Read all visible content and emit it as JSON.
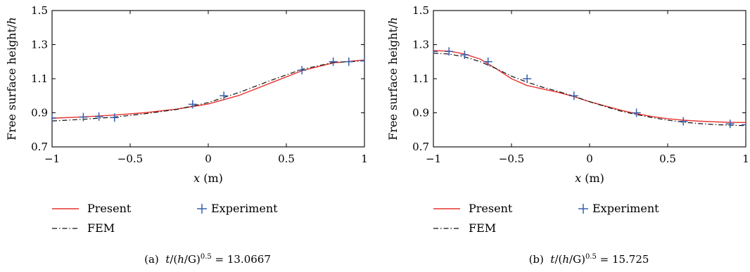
{
  "chart_data": [
    {
      "type": "line",
      "panel": "a",
      "caption": {
        "tag": "(a)",
        "t": "t",
        "paren": "/(",
        "h": "h",
        "slash": "/",
        "G": "G",
        "close": ")",
        "exp": "0.5",
        "value": " = 13.0667"
      },
      "xlabel": {
        "var": "x",
        "unit": " (m)"
      },
      "ylabel": {
        "prefix": "Free surface height/",
        "var": "h"
      },
      "xlim": [
        -1,
        1
      ],
      "ylim": [
        0.7,
        1.5
      ],
      "xticks": [
        -1,
        -0.5,
        0,
        0.5,
        1
      ],
      "xtick_labels": [
        "−1",
        "−0.5",
        "0",
        "0.5",
        "1"
      ],
      "yticks": [
        0.7,
        0.9,
        1.1,
        1.3,
        1.5
      ],
      "ytick_labels": [
        "0.7",
        "0.9",
        "1.1",
        "1.3",
        "1.5"
      ],
      "grid": false,
      "legend_position": "below",
      "series": [
        {
          "name": "Present",
          "style": "line",
          "color": "#e8322d",
          "x": [
            -1,
            -0.8,
            -0.6,
            -0.4,
            -0.2,
            0,
            0.2,
            0.4,
            0.6,
            0.8,
            1
          ],
          "y": [
            0.868,
            0.876,
            0.887,
            0.901,
            0.922,
            0.952,
            1.003,
            1.075,
            1.147,
            1.193,
            1.21
          ]
        },
        {
          "name": "FEM",
          "style": "dash-dot",
          "color": "#111111",
          "x": [
            -1,
            -0.8,
            -0.6,
            -0.4,
            -0.2,
            0,
            0.2,
            0.4,
            0.6,
            0.8,
            1
          ],
          "y": [
            0.852,
            0.862,
            0.875,
            0.895,
            0.92,
            0.96,
            1.02,
            1.09,
            1.155,
            1.195,
            1.205
          ]
        },
        {
          "name": "Experiment",
          "style": "marker-plus",
          "color": "#3a5fad",
          "x": [
            -1,
            -0.8,
            -0.7,
            -0.6,
            -0.1,
            0.1,
            0.6,
            0.8,
            0.9,
            1
          ],
          "y": [
            0.87,
            0.875,
            0.878,
            0.872,
            0.95,
            1.0,
            1.15,
            1.2,
            1.2,
            1.205
          ]
        }
      ]
    },
    {
      "type": "line",
      "panel": "b",
      "caption": {
        "tag": "(b)",
        "t": "t",
        "paren": "/(",
        "h": "h",
        "slash": "/",
        "G": "G",
        "close": ")",
        "exp": "0.5",
        "value": " = 15.725"
      },
      "xlabel": {
        "var": "x",
        "unit": " (m)"
      },
      "ylabel": {
        "prefix": "Free surface height/",
        "var": "h"
      },
      "xlim": [
        -1,
        1
      ],
      "ylim": [
        0.7,
        1.5
      ],
      "xticks": [
        -1,
        -0.5,
        0,
        0.5,
        1
      ],
      "xtick_labels": [
        "−1",
        "−0.5",
        "0",
        "0.5",
        "1"
      ],
      "yticks": [
        0.7,
        0.9,
        1.1,
        1.3,
        1.5
      ],
      "ytick_labels": [
        "0.7",
        "0.9",
        "1.1",
        "1.3",
        "1.5"
      ],
      "grid": false,
      "legend_position": "below",
      "series": [
        {
          "name": "Present",
          "style": "line",
          "color": "#e8322d",
          "x": [
            -1,
            -0.9,
            -0.8,
            -0.7,
            -0.6,
            -0.5,
            -0.4,
            -0.3,
            -0.2,
            -0.1,
            0,
            0.1,
            0.2,
            0.3,
            0.4,
            0.5,
            0.6,
            0.7,
            0.8,
            0.9,
            1
          ],
          "y": [
            1.265,
            1.262,
            1.245,
            1.215,
            1.16,
            1.1,
            1.06,
            1.04,
            1.02,
            0.995,
            0.965,
            0.94,
            0.915,
            0.895,
            0.878,
            0.865,
            0.857,
            0.851,
            0.847,
            0.844,
            0.843
          ]
        },
        {
          "name": "FEM",
          "style": "dash-dot",
          "color": "#111111",
          "x": [
            -1,
            -0.9,
            -0.8,
            -0.7,
            -0.6,
            -0.5,
            -0.4,
            -0.3,
            -0.2,
            -0.1,
            0,
            0.1,
            0.2,
            0.3,
            0.4,
            0.5,
            0.6,
            0.7,
            0.8,
            0.9,
            1
          ],
          "y": [
            1.25,
            1.245,
            1.228,
            1.2,
            1.16,
            1.115,
            1.08,
            1.05,
            1.025,
            0.997,
            0.965,
            0.937,
            0.91,
            0.89,
            0.872,
            0.857,
            0.845,
            0.837,
            0.831,
            0.827,
            0.825
          ]
        },
        {
          "name": "Experiment",
          "style": "marker-plus",
          "color": "#3a5fad",
          "x": [
            -1,
            -0.9,
            -0.8,
            -0.65,
            -0.4,
            -0.1,
            0.3,
            0.6,
            0.9,
            1
          ],
          "y": [
            1.26,
            1.26,
            1.24,
            1.2,
            1.1,
            1.0,
            0.9,
            0.85,
            0.835,
            0.83
          ]
        }
      ]
    }
  ]
}
